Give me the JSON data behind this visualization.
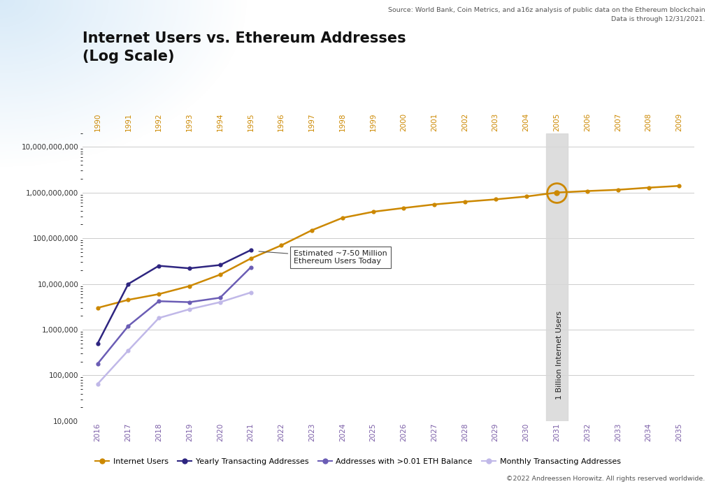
{
  "title": "Internet Users vs. Ethereum Addresses\n(Log Scale)",
  "source_text": "Source: World Bank, Coin Metrics, and a16z analysis of public data on the Ethereum blockchain\nData is through 12/31/2021.",
  "copyright_text": "©2022 Andreessen Horowitz. All rights reserved worldwide.",
  "annotation_text": "Estimated ~7-50 Million\nEthereum Users Today",
  "billion_label": "1 Billion Internet Users",
  "bottom_x_labels": [
    "2016",
    "2017",
    "2018",
    "2019",
    "2020",
    "2021",
    "2022",
    "2023",
    "2024",
    "2025",
    "2026",
    "2027",
    "2028",
    "2029",
    "2030",
    "2031",
    "2032",
    "2033",
    "2034",
    "2035"
  ],
  "top_x_labels": [
    "1990",
    "1991",
    "1992",
    "1993",
    "1994",
    "1995",
    "1996",
    "1997",
    "1998",
    "1999",
    "2000",
    "2001",
    "2002",
    "2003",
    "2004",
    "2005",
    "2006",
    "2007",
    "2008",
    "2009"
  ],
  "internet_users": {
    "x": [
      2016,
      2017,
      2018,
      2019,
      2020,
      2021,
      2022,
      2023,
      2024,
      2025,
      2026,
      2027,
      2028,
      2029,
      2030,
      2031,
      2032,
      2033,
      2034,
      2035
    ],
    "y": [
      3000000,
      4500000,
      6000000,
      9000000,
      16000000,
      36000000,
      70000000,
      150000000,
      280000000,
      380000000,
      460000000,
      550000000,
      630000000,
      710000000,
      820000000,
      1000000000,
      1080000000,
      1150000000,
      1280000000,
      1400000000
    ],
    "color": "#CC8800",
    "label": "Internet Users"
  },
  "yearly_transacting": {
    "x": [
      2016,
      2017,
      2018,
      2019,
      2020,
      2021
    ],
    "y": [
      500000,
      10000000,
      25000000,
      22000000,
      26000000,
      55000000
    ],
    "color": "#2E2580",
    "label": "Yearly Transacting Addresses"
  },
  "eth_balance": {
    "x": [
      2016,
      2017,
      2018,
      2019,
      2020,
      2021
    ],
    "y": [
      180000,
      1200000,
      4200000,
      4000000,
      5000000,
      23000000
    ],
    "color": "#6B5DB5",
    "label": "Addresses with >0.01 ETH Balance"
  },
  "monthly_transacting": {
    "x": [
      2016,
      2017,
      2018,
      2019,
      2020,
      2021
    ],
    "y": [
      65000,
      350000,
      1800000,
      2800000,
      4000000,
      6500000
    ],
    "color": "#C0B8E8",
    "label": "Monthly Transacting Addresses"
  },
  "ylim": [
    10000,
    20000000000
  ],
  "xlim": [
    2015.5,
    2035.5
  ],
  "billion_x": 2031,
  "yticks": [
    10000,
    100000,
    1000000,
    10000000,
    100000000,
    1000000000,
    10000000000
  ],
  "ylabels": [
    "10,000",
    "100,000",
    "1,000,000",
    "10,000,000",
    "100,000,000",
    "1,000,000,000",
    "10,000,000,000"
  ]
}
